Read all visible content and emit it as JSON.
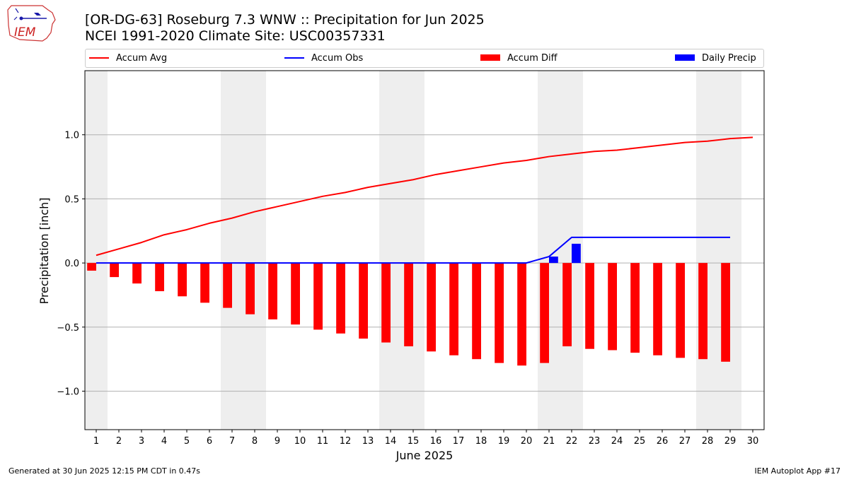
{
  "title_line1": "[OR-DG-63] Roseburg 7.3 WNW :: Precipitation for Jun 2025",
  "title_line2": "NCEI 1991-2020 Climate Site: USC00357331",
  "logo_text": "IEM",
  "footer_left": "Generated at 30 Jun 2025 12:15 PM CDT in 0.47s",
  "footer_right": "IEM Autoplot App #17",
  "colors": {
    "avg": "#ff0000",
    "obs": "#0000ff",
    "diff": "#ff0000",
    "daily": "#0000ff",
    "weekend_band": "#eeeeee",
    "grid": "#b0b0b0"
  },
  "chart_data": {
    "type": "bar",
    "xlabel": "June 2025",
    "ylabel": "Precipitation [inch]",
    "ylim": [
      -1.3,
      1.5
    ],
    "xlim": [
      0.5,
      30.5
    ],
    "yticks": [
      1.0,
      0.5,
      0.0,
      -0.5,
      -1.0
    ],
    "ytick_labels": [
      "1.0",
      "0.5",
      "0.0",
      "−0.5",
      "−1.0"
    ],
    "grid": "y",
    "legend_position": "top",
    "days": [
      1,
      2,
      3,
      4,
      5,
      6,
      7,
      8,
      9,
      10,
      11,
      12,
      13,
      14,
      15,
      16,
      17,
      18,
      19,
      20,
      21,
      22,
      23,
      24,
      25,
      26,
      27,
      28,
      29,
      30
    ],
    "weekend_bands": [
      [
        0.5,
        1.5
      ],
      [
        6.5,
        8.5
      ],
      [
        13.5,
        15.5
      ],
      [
        20.5,
        22.5
      ],
      [
        27.5,
        29.5
      ]
    ],
    "series": [
      {
        "name": "Accum Avg",
        "kind": "line",
        "color": "#ff0000",
        "values": [
          0.06,
          0.11,
          0.16,
          0.22,
          0.26,
          0.31,
          0.35,
          0.4,
          0.44,
          0.48,
          0.52,
          0.55,
          0.59,
          0.62,
          0.65,
          0.69,
          0.72,
          0.75,
          0.78,
          0.8,
          0.83,
          0.85,
          0.87,
          0.88,
          0.9,
          0.92,
          0.94,
          0.95,
          0.97,
          0.98
        ]
      },
      {
        "name": "Accum Obs",
        "kind": "line",
        "color": "#0000ff",
        "values": [
          0,
          0,
          0,
          0,
          0,
          0,
          0,
          0,
          0,
          0,
          0,
          0,
          0,
          0,
          0,
          0,
          0,
          0,
          0,
          0,
          0.05,
          0.2,
          0.2,
          0.2,
          0.2,
          0.2,
          0.2,
          0.2,
          0.2
        ]
      },
      {
        "name": "Accum Diff",
        "kind": "bar",
        "color": "#ff0000",
        "values": [
          -0.06,
          -0.11,
          -0.16,
          -0.22,
          -0.26,
          -0.31,
          -0.35,
          -0.4,
          -0.44,
          -0.48,
          -0.52,
          -0.55,
          -0.59,
          -0.62,
          -0.65,
          -0.69,
          -0.72,
          -0.75,
          -0.78,
          -0.8,
          -0.78,
          -0.65,
          -0.67,
          -0.68,
          -0.7,
          -0.72,
          -0.74,
          -0.75,
          -0.77
        ]
      },
      {
        "name": "Daily Precip",
        "kind": "bar",
        "color": "#0000ff",
        "values": [
          0,
          0,
          0,
          0,
          0,
          0,
          0,
          0,
          0,
          0,
          0,
          0,
          0,
          0,
          0,
          0,
          0,
          0,
          0,
          0,
          0.05,
          0.15,
          0,
          0,
          0,
          0,
          0,
          0,
          0
        ]
      }
    ]
  }
}
